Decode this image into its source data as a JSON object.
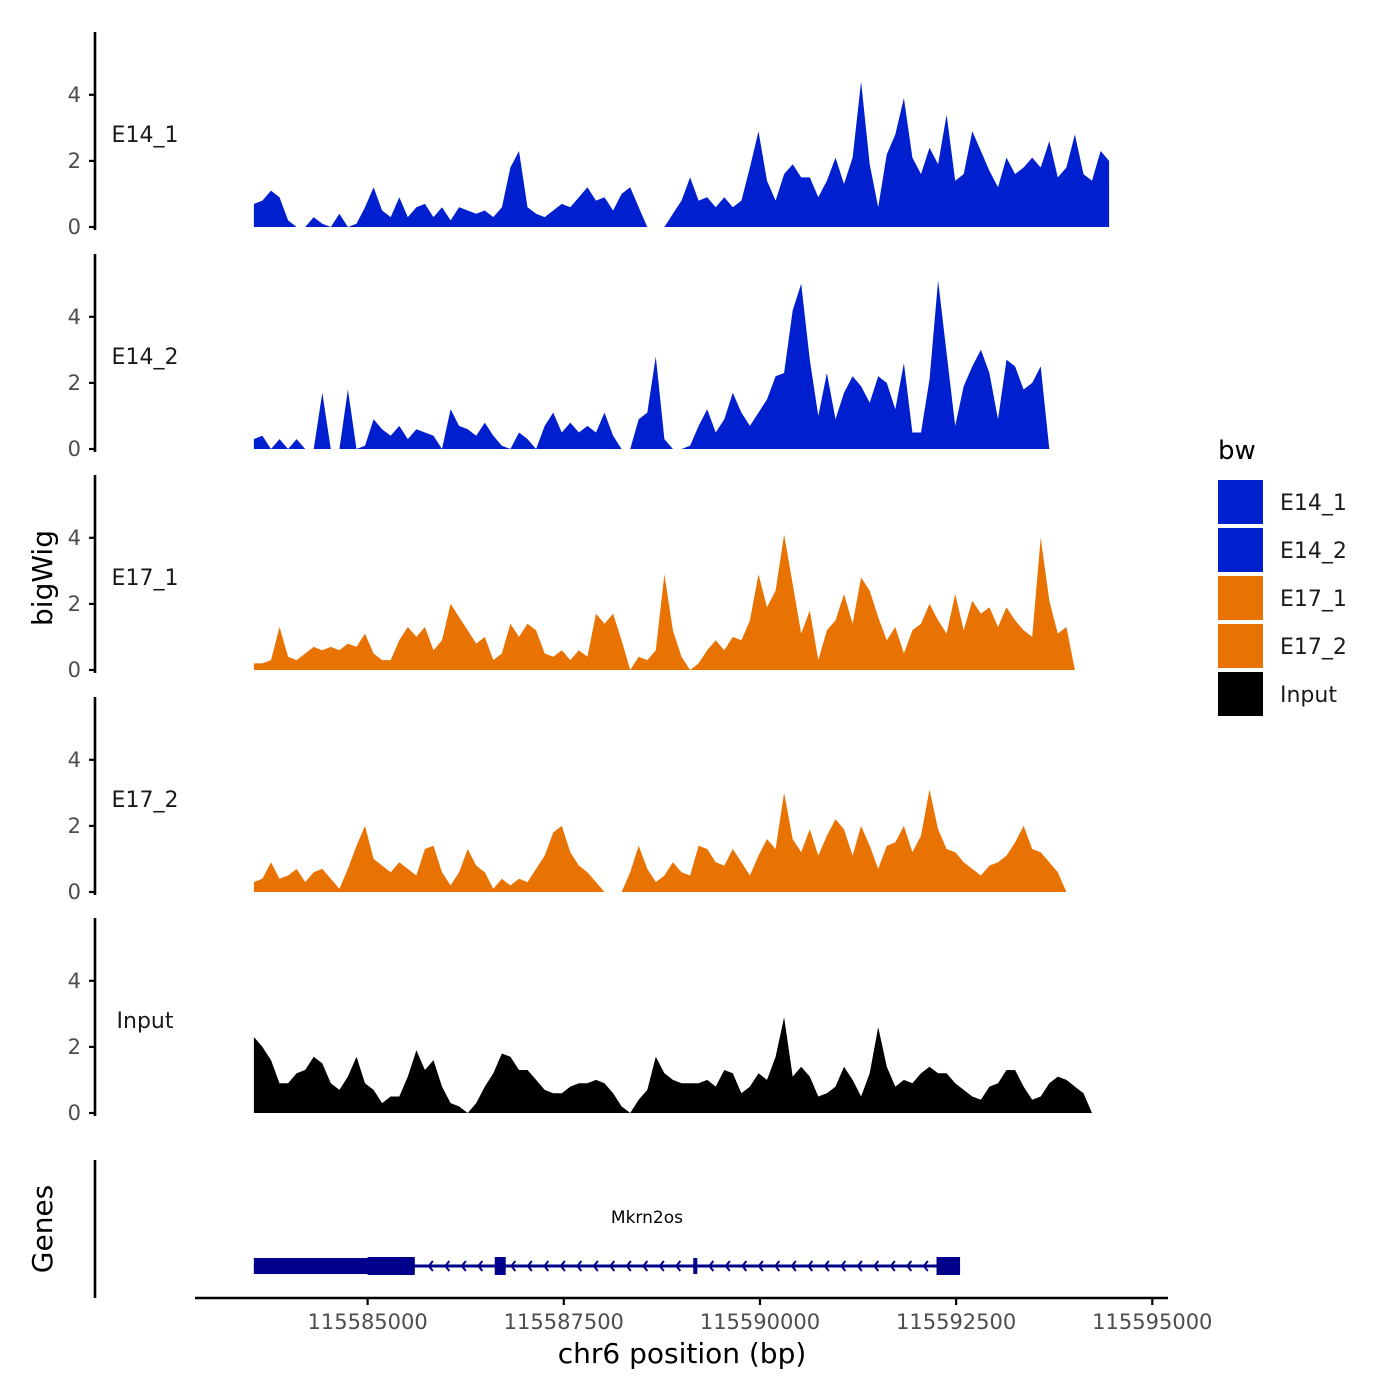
{
  "chart_data": {
    "type": "area",
    "ylabel": "bigWig",
    "xlabel": "chr6 position (bp)",
    "genes_label": "Genes",
    "x_range": [
      115582800,
      115595200
    ],
    "region": [
      115583550,
      115594450
    ],
    "x_ticks": [
      {
        "value": 115585000,
        "label": "115585000"
      },
      {
        "value": 115587500,
        "label": "115587500"
      },
      {
        "value": 115590000,
        "label": "115590000"
      },
      {
        "value": 115592500,
        "label": "115592500"
      },
      {
        "value": 115595000,
        "label": "115595000"
      }
    ],
    "y_range": [
      0,
      5.9
    ],
    "y_ticks": [
      {
        "value": 0,
        "label": "0"
      },
      {
        "value": 2,
        "label": "2"
      },
      {
        "value": 4,
        "label": "4"
      }
    ],
    "legend": {
      "title": "bw",
      "entries": [
        {
          "label": "E14_1",
          "color": "#0020D0"
        },
        {
          "label": "E14_2",
          "color": "#0020D0"
        },
        {
          "label": "E17_1",
          "color": "#E87303"
        },
        {
          "label": "E17_2",
          "color": "#E87303"
        },
        {
          "label": "Input",
          "color": "#000000"
        }
      ]
    },
    "series": [
      {
        "name": "E14_1",
        "label": "E14_1",
        "color": "#0020D0",
        "values": [
          0.7,
          0.8,
          1.1,
          0.9,
          0.2,
          0.0,
          0.0,
          0.3,
          0.1,
          0.0,
          0.4,
          0.0,
          0.1,
          0.6,
          1.2,
          0.5,
          0.3,
          0.9,
          0.3,
          0.6,
          0.7,
          0.3,
          0.6,
          0.2,
          0.6,
          0.5,
          0.4,
          0.5,
          0.3,
          0.6,
          1.8,
          2.3,
          0.6,
          0.4,
          0.3,
          0.5,
          0.7,
          0.6,
          0.9,
          1.2,
          0.8,
          0.9,
          0.5,
          1.0,
          1.2,
          0.6,
          0.0,
          0.0,
          0.0,
          0.4,
          0.8,
          1.5,
          0.8,
          0.9,
          0.6,
          0.9,
          0.6,
          0.8,
          1.8,
          2.9,
          1.4,
          0.8,
          1.6,
          1.9,
          1.5,
          1.5,
          0.9,
          1.4,
          2.1,
          1.3,
          2.1,
          4.4,
          1.9,
          0.6,
          2.2,
          2.8,
          3.9,
          2.1,
          1.6,
          2.4,
          1.9,
          3.4,
          1.4,
          1.6,
          2.9,
          2.3,
          1.7,
          1.2,
          2.1,
          1.6,
          1.8,
          2.1,
          1.8,
          2.6,
          1.5,
          1.8,
          2.8,
          1.6,
          1.4,
          2.3,
          2.0
        ]
      },
      {
        "name": "E14_2",
        "label": "E14_2",
        "color": "#0020D0",
        "values": [
          0.3,
          0.4,
          0.0,
          0.3,
          0.0,
          0.3,
          0.0,
          0.0,
          1.7,
          0.0,
          0.0,
          1.8,
          0.0,
          0.1,
          0.9,
          0.6,
          0.4,
          0.7,
          0.3,
          0.6,
          0.5,
          0.4,
          0.0,
          1.2,
          0.7,
          0.6,
          0.4,
          0.8,
          0.4,
          0.1,
          0.0,
          0.5,
          0.3,
          0.0,
          0.7,
          1.1,
          0.5,
          0.8,
          0.5,
          0.7,
          0.5,
          1.1,
          0.4,
          0.0,
          0.0,
          0.9,
          1.1,
          2.8,
          0.3,
          0.0,
          0.0,
          0.1,
          0.7,
          1.2,
          0.5,
          0.9,
          1.7,
          1.1,
          0.7,
          1.1,
          1.5,
          2.2,
          2.3,
          4.2,
          5.0,
          2.7,
          1.0,
          2.3,
          0.9,
          1.7,
          2.2,
          1.9,
          1.4,
          2.2,
          2.0,
          1.2,
          2.6,
          0.5,
          0.5,
          2.1,
          5.1,
          2.9,
          0.7,
          1.9,
          2.5,
          3.0,
          2.3,
          0.9,
          2.7,
          2.5,
          1.8,
          2.0,
          2.5,
          0.0,
          0.0,
          0.0,
          0.0,
          0.0,
          0.0,
          0.0,
          0.0
        ]
      },
      {
        "name": "E17_1",
        "label": "E17_1",
        "color": "#E87303",
        "values": [
          0.2,
          0.2,
          0.3,
          1.3,
          0.4,
          0.3,
          0.5,
          0.7,
          0.6,
          0.7,
          0.6,
          0.8,
          0.7,
          1.1,
          0.5,
          0.3,
          0.3,
          0.9,
          1.3,
          1.0,
          1.3,
          0.6,
          0.9,
          2.0,
          1.6,
          1.2,
          0.8,
          1.0,
          0.3,
          0.5,
          1.4,
          1.0,
          1.4,
          1.2,
          0.5,
          0.4,
          0.6,
          0.3,
          0.6,
          0.4,
          1.7,
          1.4,
          1.7,
          0.9,
          0.0,
          0.4,
          0.3,
          0.6,
          2.9,
          1.2,
          0.4,
          0.0,
          0.2,
          0.6,
          0.9,
          0.6,
          1.0,
          0.9,
          1.5,
          2.9,
          1.9,
          2.4,
          4.1,
          2.6,
          1.1,
          1.8,
          0.3,
          1.2,
          1.5,
          2.3,
          1.4,
          2.8,
          2.4,
          1.6,
          0.9,
          1.3,
          0.5,
          1.2,
          1.4,
          2.0,
          1.5,
          1.1,
          2.3,
          1.2,
          2.1,
          1.7,
          1.9,
          1.3,
          1.9,
          1.5,
          1.2,
          1.0,
          4.0,
          2.1,
          1.1,
          1.3,
          0.0,
          0.0,
          0.0,
          0.0,
          0.0
        ]
      },
      {
        "name": "E17_2",
        "label": "E17_2",
        "color": "#E87303",
        "values": [
          0.3,
          0.4,
          0.9,
          0.4,
          0.5,
          0.7,
          0.3,
          0.6,
          0.7,
          0.4,
          0.1,
          0.7,
          1.4,
          2.0,
          1.0,
          0.8,
          0.6,
          0.9,
          0.7,
          0.5,
          1.3,
          1.4,
          0.6,
          0.2,
          0.6,
          1.3,
          0.8,
          0.6,
          0.1,
          0.4,
          0.2,
          0.4,
          0.3,
          0.7,
          1.1,
          1.8,
          2.0,
          1.2,
          0.8,
          0.6,
          0.3,
          0.0,
          0.0,
          0.0,
          0.6,
          1.4,
          0.7,
          0.3,
          0.5,
          0.9,
          0.6,
          0.5,
          1.4,
          1.3,
          0.9,
          0.8,
          1.3,
          0.9,
          0.5,
          1.1,
          1.6,
          1.3,
          3.0,
          1.6,
          1.2,
          1.9,
          1.1,
          1.7,
          2.2,
          1.9,
          1.1,
          2.0,
          1.4,
          0.7,
          1.4,
          1.5,
          2.0,
          1.2,
          1.7,
          3.1,
          1.9,
          1.3,
          1.2,
          0.9,
          0.7,
          0.5,
          0.8,
          0.9,
          1.1,
          1.5,
          2.0,
          1.3,
          1.2,
          0.9,
          0.6,
          0.0,
          0.0,
          0.0,
          0.0,
          0.0,
          0.0
        ]
      },
      {
        "name": "Input",
        "label": "Input",
        "color": "#000000",
        "values": [
          2.3,
          2.0,
          1.6,
          0.9,
          0.9,
          1.2,
          1.3,
          1.7,
          1.5,
          0.9,
          0.7,
          1.1,
          1.7,
          0.9,
          0.7,
          0.3,
          0.5,
          0.5,
          1.1,
          1.9,
          1.3,
          1.6,
          0.8,
          0.3,
          0.2,
          0.0,
          0.3,
          0.8,
          1.2,
          1.8,
          1.7,
          1.3,
          1.3,
          1.0,
          0.7,
          0.6,
          0.6,
          0.8,
          0.9,
          0.9,
          1.0,
          0.9,
          0.6,
          0.2,
          0.0,
          0.4,
          0.7,
          1.7,
          1.2,
          1.0,
          0.9,
          0.9,
          0.9,
          1.0,
          0.8,
          1.3,
          1.2,
          0.6,
          0.8,
          1.2,
          1.0,
          1.7,
          2.9,
          1.1,
          1.4,
          1.1,
          0.5,
          0.6,
          0.8,
          1.4,
          1.0,
          0.5,
          1.2,
          2.6,
          1.4,
          0.8,
          1.0,
          0.9,
          1.2,
          1.4,
          1.2,
          1.2,
          0.9,
          0.7,
          0.5,
          0.4,
          0.8,
          0.9,
          1.3,
          1.3,
          0.8,
          0.4,
          0.5,
          0.9,
          1.1,
          1.0,
          0.8,
          0.6,
          0.0,
          0.0,
          0.0
        ]
      }
    ],
    "genes": [
      {
        "name": "Mkrn2os",
        "start": 115583550,
        "end": 115592550,
        "strand": "-",
        "exons": [
          {
            "start": 115583550,
            "end": 115585600
          },
          {
            "start": 115586620,
            "end": 115586760
          },
          {
            "start": 115592250,
            "end": 115592550
          }
        ]
      }
    ]
  }
}
